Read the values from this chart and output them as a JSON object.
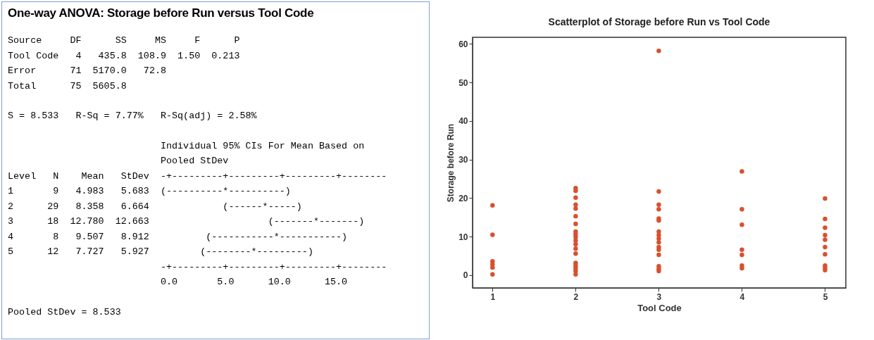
{
  "chart_data": [
    {
      "type": "other",
      "title": "One-way ANOVA: Storage before Run versus Tool Code",
      "annotations": [
        "Source     DF      SS     MS     F      P\nTool Code   4   435.8  108.9  1.50  0.213\nError      71  5170.0   72.8\nTotal      75  5605.8",
        "S = 8.533   R-Sq = 7.77%   R-Sq(adj) = 2.58%",
        "                           Individual 95% CIs For Mean Based on\n                           Pooled StDev\nLevel   N    Mean   StDev  -+---------+---------+---------+--------\n1       9   4.983   5.683  (----------*----------)\n2      29   8.358   6.664             (------*-----)\n3      18  12.780  12.663                     (-------*-------)\n4       8   9.507   8.912          (-----------*-----------)\n5      12   7.727   5.927         (--------*---------)\n                           -+---------+---------+---------+--------\n                           0.0       5.0      10.0      15.0",
        "Pooled StDev = 8.533"
      ]
    },
    {
      "type": "scatter",
      "title": "Scatterplot of Storage before Run vs Tool Code",
      "xlabel": "Tool Code",
      "ylabel": "Storage before Run",
      "series": [
        {
          "color": "#d9502f",
          "x": [
            1,
            1,
            1,
            1,
            1,
            1,
            2,
            2,
            2,
            2,
            2,
            2,
            2,
            2,
            2,
            2,
            2,
            2,
            2,
            2,
            2,
            2,
            2,
            2,
            2,
            3,
            3,
            3,
            3,
            3,
            3,
            3,
            3,
            3,
            3,
            3,
            3,
            3,
            3,
            3,
            3,
            4,
            4,
            4,
            4,
            4,
            4,
            4,
            5,
            5,
            5,
            5,
            5,
            5,
            5,
            5,
            5,
            5
          ],
          "values": [
            18.1,
            10.5,
            3.6,
            2.8,
            2.0,
            0.2,
            22.6,
            21.9,
            20.1,
            18.3,
            17.3,
            15.3,
            13.3,
            11.3,
            10.6,
            9.9,
            9.0,
            8.0,
            6.9,
            5.6,
            3.2,
            2.5,
            1.8,
            1.1,
            0.2,
            58.2,
            21.7,
            18.3,
            17.1,
            14.7,
            14.2,
            11.3,
            10.4,
            9.5,
            8.5,
            7.3,
            6.6,
            5.3,
            2.3,
            1.6,
            1.1,
            26.9,
            17.1,
            13.1,
            6.6,
            5.3,
            2.5,
            1.8,
            19.9,
            14.6,
            12.3,
            10.4,
            9.2,
            7.3,
            5.4,
            2.5,
            1.9,
            1.3
          ]
        }
      ],
      "xlim": [
        0.76,
        5.25
      ],
      "ylim": [
        -3.3,
        61.7
      ],
      "xticks": [
        1,
        2,
        3,
        4,
        5
      ],
      "yticks": [
        0,
        10,
        20,
        30,
        40,
        50,
        60
      ],
      "marker": "circle"
    }
  ]
}
